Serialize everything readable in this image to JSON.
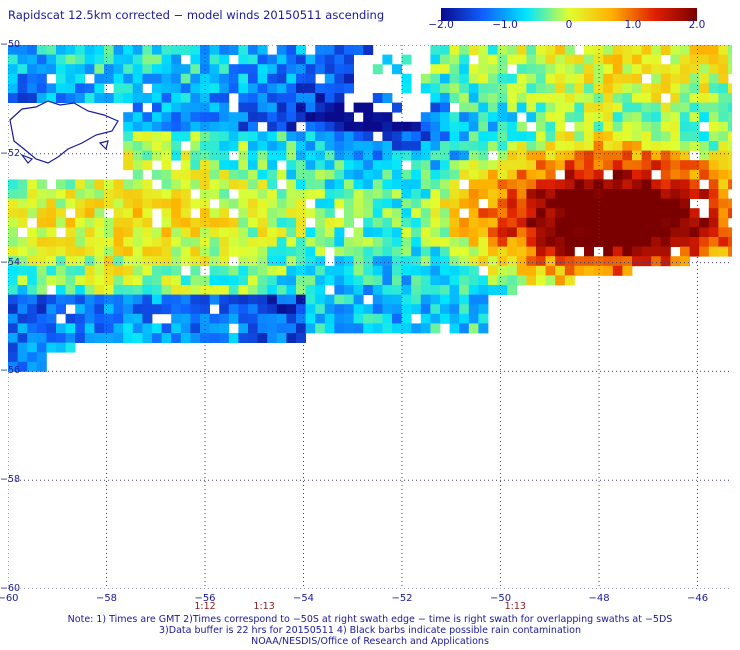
{
  "title": "Rapidscat 12.5km corrected − model winds 20150511 ascending",
  "colorbar": {
    "ticks": [
      {
        "label": "−2.0",
        "value": -2.0
      },
      {
        "label": "−1.0",
        "value": -1.0
      },
      {
        "label": "0",
        "value": 0
      },
      {
        "label": "1.0",
        "value": 1.0
      },
      {
        "label": "2.0",
        "value": 2.0
      }
    ],
    "range": [
      -2.0,
      2.0
    ],
    "colors": [
      "#0a0a8c",
      "#1060ff",
      "#00e5ff",
      "#e0ff30",
      "#ffb000",
      "#e02000",
      "#7a0000"
    ]
  },
  "map": {
    "lon_range": [
      -60,
      -45.3
    ],
    "lat_range": [
      -50,
      -60
    ],
    "lat_labels": [
      {
        "label": "−50",
        "value": -50
      },
      {
        "label": "−52",
        "value": -52
      },
      {
        "label": "−54",
        "value": -54
      },
      {
        "label": "−56",
        "value": -56
      },
      {
        "label": "−58",
        "value": -58
      },
      {
        "label": "−60",
        "value": -60
      }
    ],
    "lon_labels": [
      {
        "label": "−60",
        "value": -60
      },
      {
        "label": "−58",
        "value": -58
      },
      {
        "label": "−56",
        "value": -56
      },
      {
        "label": "−54",
        "value": -54
      },
      {
        "label": "−52",
        "value": -52
      },
      {
        "label": "−50",
        "value": -50
      },
      {
        "label": "−48",
        "value": -48
      },
      {
        "label": "−46",
        "value": -46
      }
    ],
    "time_labels": [
      {
        "label": "1:12",
        "lon": -56
      },
      {
        "label": "1:13",
        "lon": -54.8
      },
      {
        "label": "1:13",
        "lon": -49.7
      }
    ],
    "land_color": "#1a1a9a"
  },
  "notes": [
    "Note: 1) Times are GMT 2)Times correspond to −50S at right swath edge − time is right swath for overlapping swaths at −5DS",
    "3)Data buffer is 22 hrs for 20150511 4) Black barbs indicate possible rain contamination",
    "NOAA/NESDIS/Office of Research and Applications"
  ]
}
